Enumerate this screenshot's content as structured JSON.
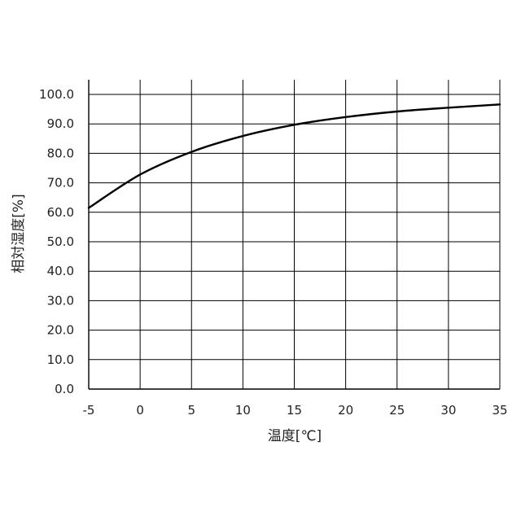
{
  "chart_data": {
    "type": "line",
    "title": "",
    "xlabel": "温度[℃]",
    "ylabel": "相対湿度[%]",
    "xlim": [
      -5,
      35
    ],
    "ylim": [
      0,
      100
    ],
    "x_ticks": [
      "-5",
      "0",
      "5",
      "10",
      "15",
      "20",
      "25",
      "30",
      "35"
    ],
    "y_ticks": [
      "0.0",
      "10.0",
      "20.0",
      "30.0",
      "40.0",
      "50.0",
      "60.0",
      "70.0",
      "80.0",
      "90.0",
      "100.0"
    ],
    "grid": true,
    "legend": "none",
    "series": [
      {
        "color": "#000000",
        "x": [
          -5,
          0,
          5,
          10,
          15,
          20,
          25,
          30,
          35
        ],
        "y": [
          61.5,
          72.8,
          80.5,
          85.9,
          89.7,
          92.3,
          94.2,
          95.5,
          96.6
        ]
      }
    ]
  }
}
